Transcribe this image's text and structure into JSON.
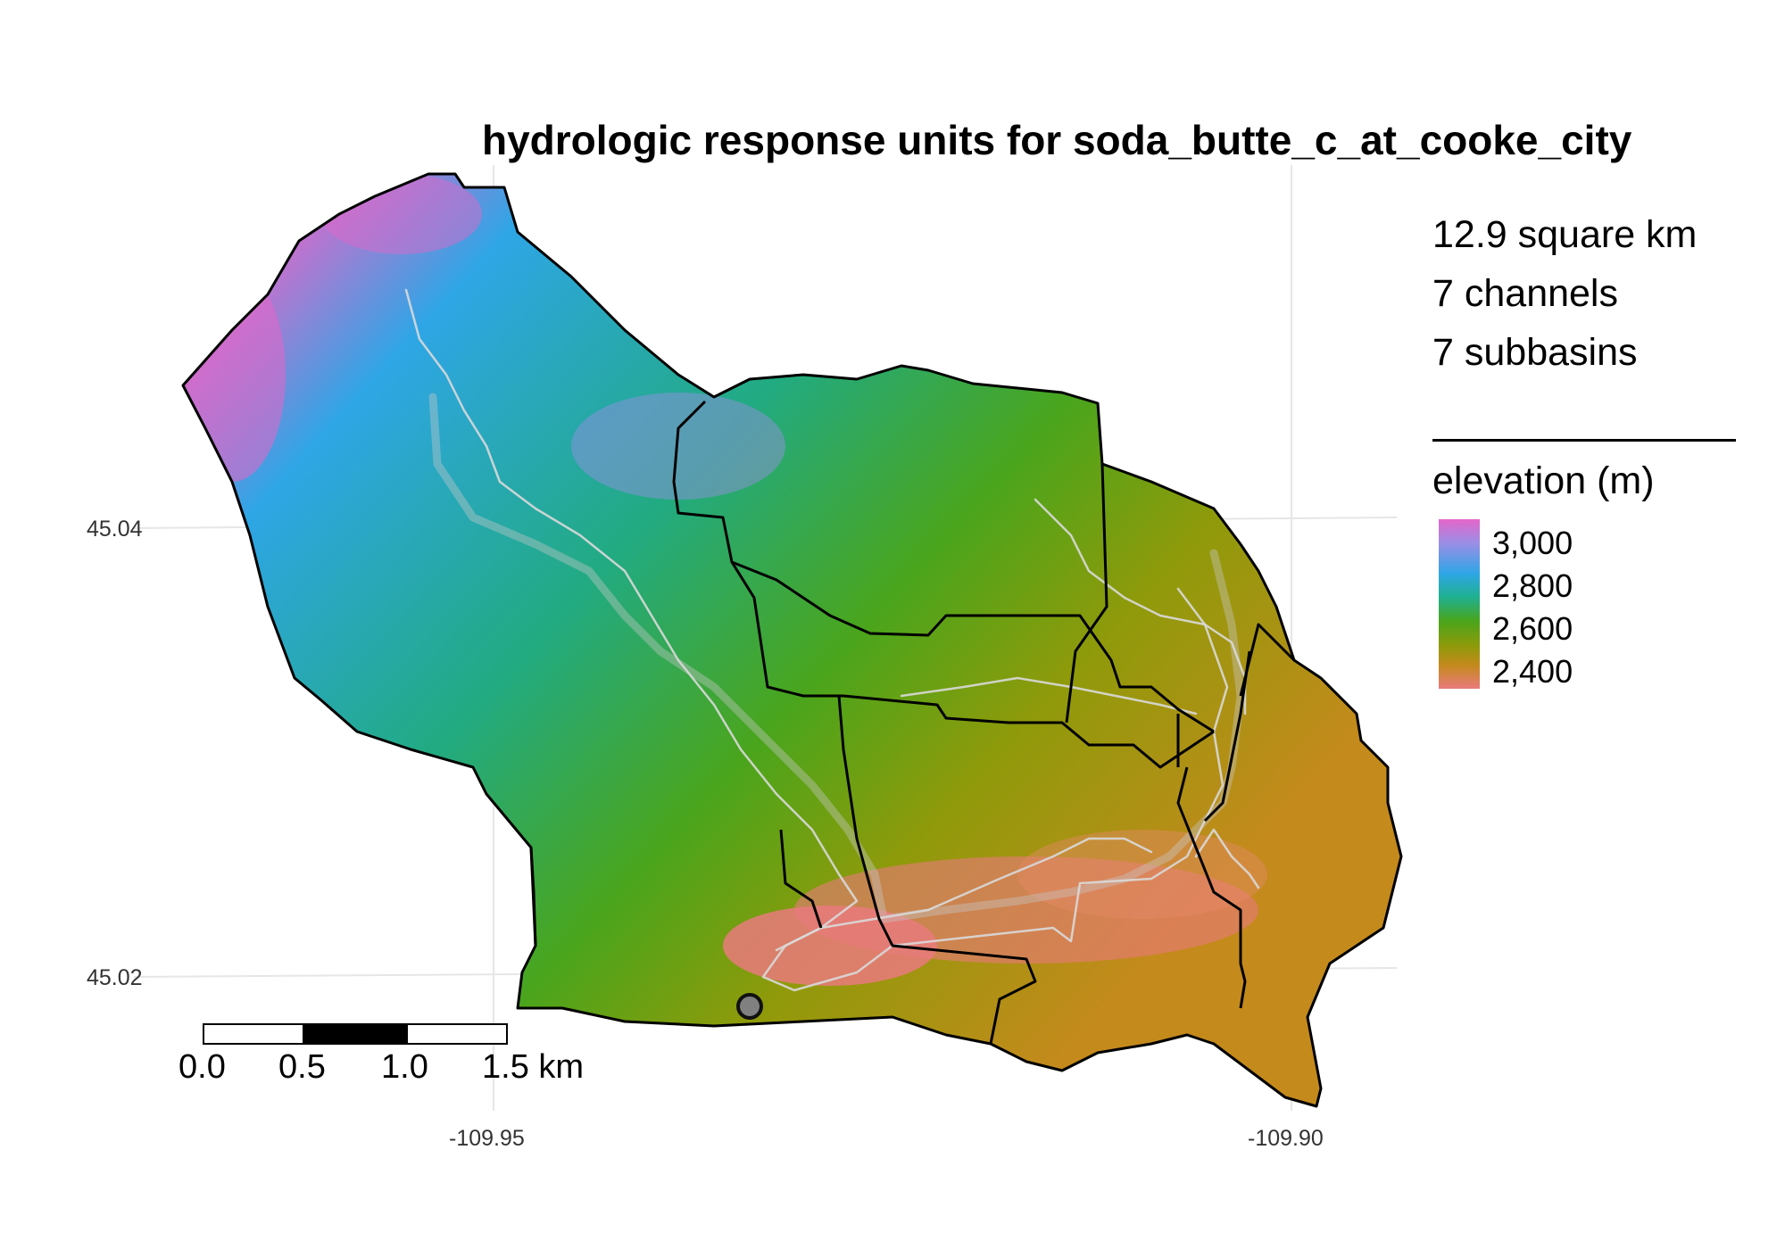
{
  "title": "hydrologic response units for soda_butte_c_at_cooke_city",
  "stats": {
    "area": "12.9 square km",
    "channels": "7 channels",
    "subbasins": "7 subbasins"
  },
  "legend": {
    "title": "elevation (m)",
    "labels": [
      "3,000",
      "2,800",
      "2,600",
      "2,400"
    ],
    "values": [
      3000,
      2800,
      2600,
      2400
    ],
    "colors": [
      "#e466c9",
      "#2ea6e6",
      "#4aa51c",
      "#e97a7c"
    ]
  },
  "axes": {
    "y_ticks": [
      "45.04",
      "45.02"
    ],
    "x_ticks": [
      "-109.95",
      "-109.90"
    ]
  },
  "scale_bar": {
    "labels": [
      "0.0",
      "0.5",
      "1.0",
      "1.5 km"
    ]
  },
  "map": {
    "grid": true,
    "outlet_marker": "gray circle"
  }
}
